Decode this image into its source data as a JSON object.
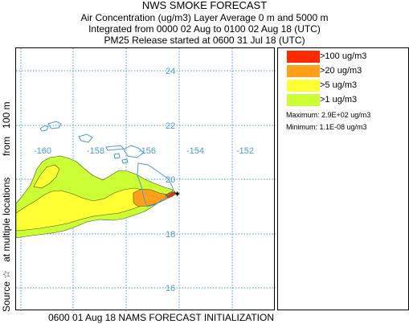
{
  "header": {
    "title": "NWS SMOKE FORECAST",
    "line2": "Air Concentration (ug/m3) Layer Average    0 m and  5000 m",
    "line3": "Integrated from 0000 02 Aug to 0100 02 Aug 18 (UTC)",
    "line4": "PM25 Release started at 0600 31 Jul 18 (UTC)"
  },
  "side_label": "Source ☆   at multiple locations        from   100 m",
  "legend": {
    "items": [
      {
        "label": ">100 ug/m3",
        "color": "#ff2a00"
      },
      {
        "label": ">20 ug/m3",
        "color": "#ff9f1a"
      },
      {
        "label": ">5 ug/m3",
        "color": "#ffff33"
      },
      {
        "label": ">1 ug/m3",
        "color": "#ccff33"
      }
    ],
    "maximum": "Maximum: 2.9E+02 ug/m3",
    "minimum": "Minimum: 1.1E-08 ug/m3"
  },
  "map": {
    "lat_labels": [
      "24",
      "22",
      "20",
      "18",
      "16"
    ],
    "lon_labels": [
      "-160",
      "-158",
      "-156",
      "-154",
      "-152"
    ],
    "grid_color": "#4a9ad4",
    "coast_color": "#4a9ad4",
    "source_marker": "star-icon"
  },
  "footer": "0600 01 Aug 18 NAMS FORECAST INITIALIZATION"
}
